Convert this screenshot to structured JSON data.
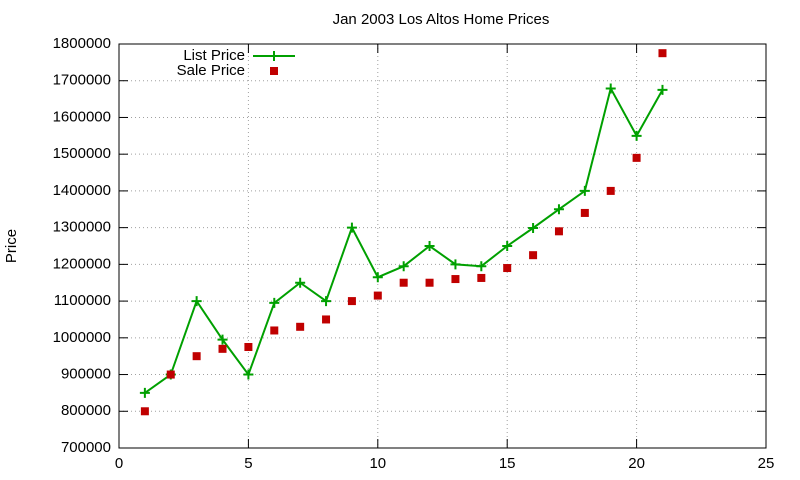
{
  "chart_data": {
    "type": "line",
    "title": "Jan 2003 Los Altos Home Prices",
    "y_label": "Price",
    "x": [
      1,
      2,
      3,
      4,
      5,
      6,
      7,
      8,
      9,
      10,
      11,
      12,
      13,
      14,
      15,
      16,
      17,
      18,
      19,
      20,
      21
    ],
    "series": [
      {
        "name": "List Price",
        "color": "#00a000",
        "style": "linespoints",
        "values": [
          850000,
          900000,
          1100000,
          995000,
          900000,
          1095000,
          1150000,
          1100000,
          1300000,
          1165000,
          1195000,
          1250000,
          1200000,
          1195000,
          1250000,
          1299000,
          1350000,
          1400000,
          1679000,
          1550000,
          1675000
        ]
      },
      {
        "name": "Sale Price",
        "color": "#c00000",
        "style": "points",
        "values": [
          800000,
          900000,
          950000,
          970000,
          975000,
          1020000,
          1030000,
          1050000,
          1100000,
          1115000,
          1150000,
          1150000,
          1160000,
          1163000,
          1190000,
          1225000,
          1290000,
          1340000,
          1400000,
          1490000,
          1775000
        ]
      }
    ],
    "xlim": [
      0,
      25
    ],
    "xticks": [
      0,
      5,
      10,
      15,
      20,
      25
    ],
    "ylim": [
      700000,
      1800000
    ],
    "yticks": [
      700000,
      800000,
      900000,
      1000000,
      1100000,
      1200000,
      1300000,
      1400000,
      1500000,
      1600000,
      1700000,
      1800000
    ],
    "grid": true,
    "legend": "top-left"
  }
}
